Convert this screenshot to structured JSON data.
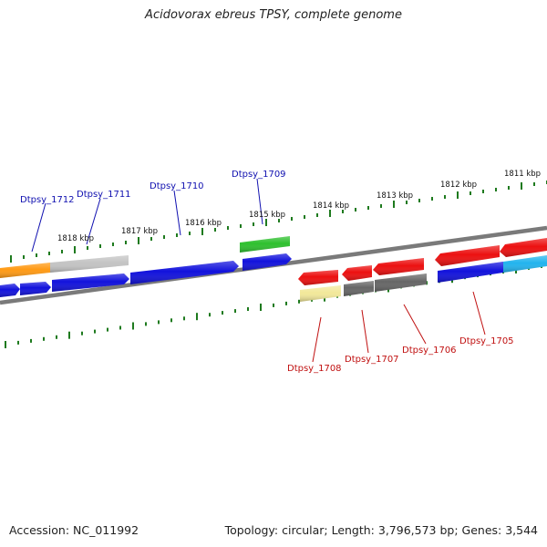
{
  "title": "Acidovorax ebreus TPSY, complete genome",
  "accession": "Accession: NC_011992",
  "topology": "Topology: circular; Length: 3,796,573 bp; Genes: 3,544",
  "colors": {
    "tick": "#1e7a1e",
    "backbone": "#7a7a7a",
    "forward_label": "#1010b0",
    "reverse_label": "#c01010",
    "blue": "#1212dc",
    "orange": "#ff9a14",
    "light_gray": "#c4c4c4",
    "green": "#2ec02e",
    "red": "#ec1010",
    "pale_yellow": "#f2e89a",
    "dark_gray": "#666666",
    "cyan": "#22b4ee"
  },
  "scale_labels": [
    "1811 kbp",
    "1812 kbp",
    "1813 kbp",
    "1814 kbp",
    "1815 kbp",
    "1816 kbp",
    "1817 kbp",
    "1818 kbp"
  ],
  "forward_gene_labels": [
    "Dtpsy_1712",
    "Dtpsy_1711",
    "Dtpsy_1710",
    "Dtpsy_1709"
  ],
  "reverse_gene_labels": [
    "Dtpsy_1708",
    "Dtpsy_1707",
    "Dtpsy_1706",
    "Dtpsy_1705"
  ]
}
